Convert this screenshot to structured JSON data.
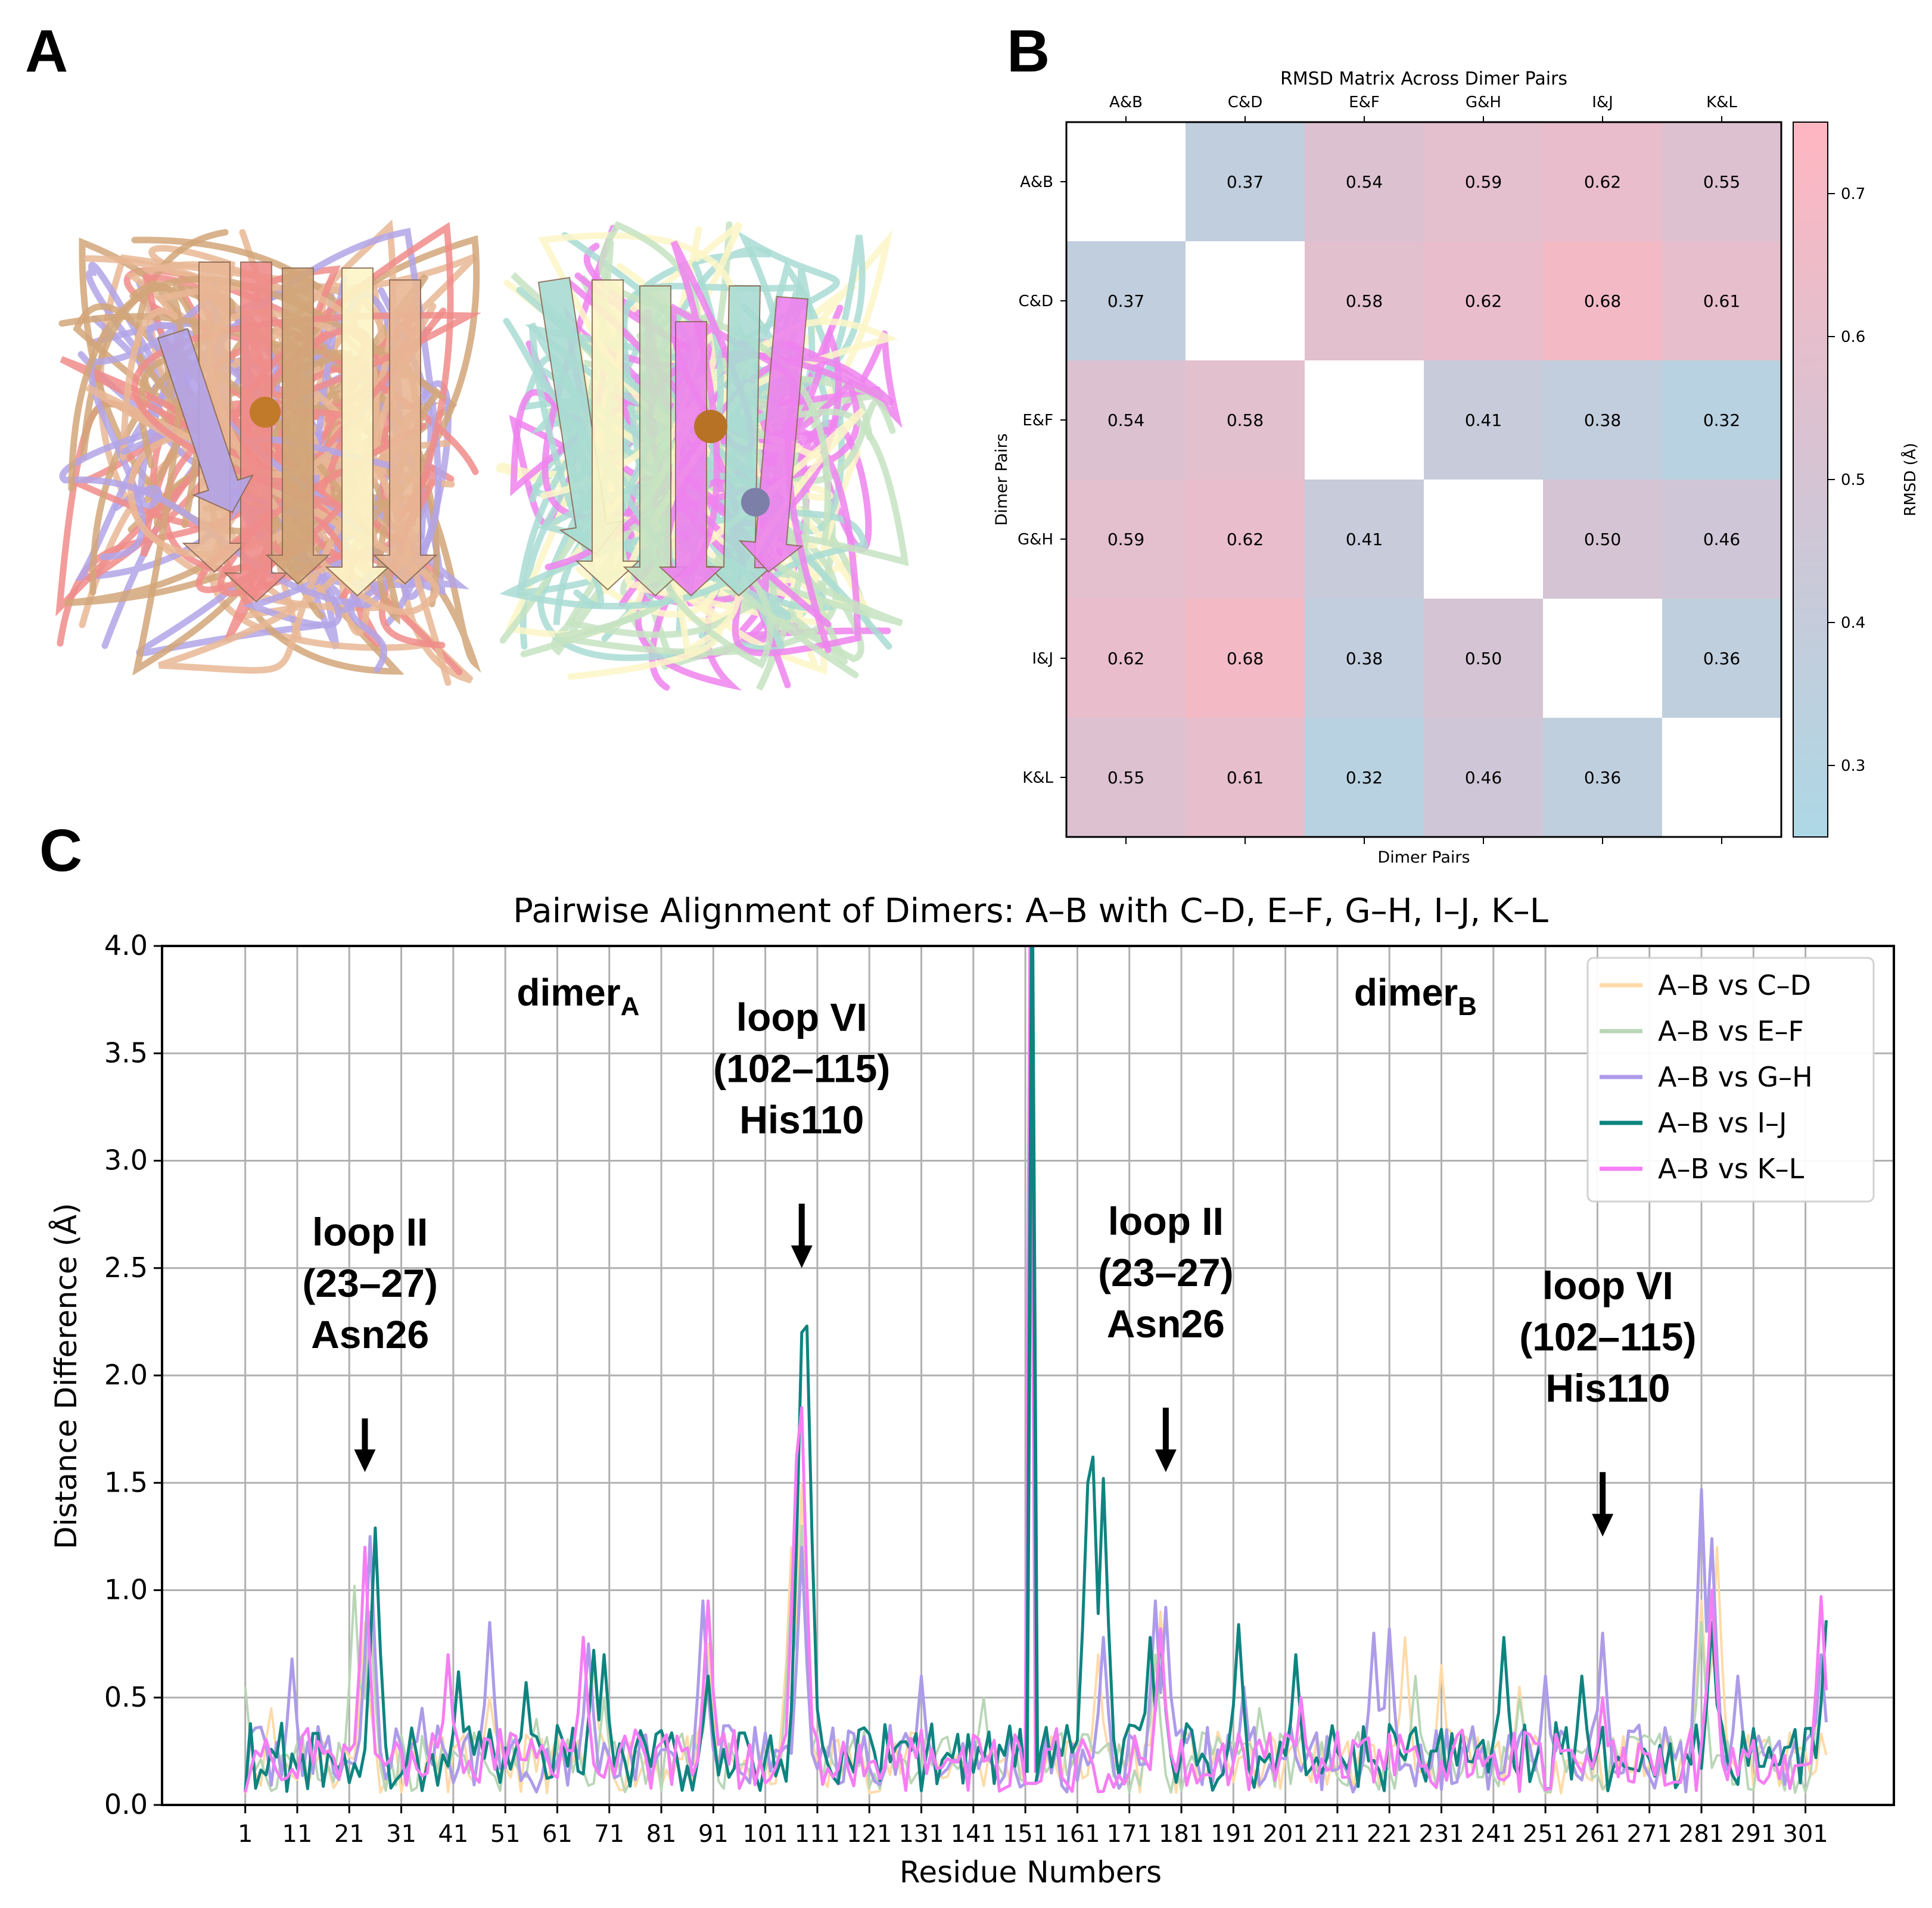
{
  "panels": {
    "a": "A",
    "b": "B",
    "c": "C"
  },
  "structure_colors": [
    "#e9b795",
    "#f08c8a",
    "#b3a4e8",
    "#a9dcd3",
    "#ee82ee",
    "#fdf6c8",
    "#c6e3c2",
    "#d2a679"
  ],
  "chart_data": [
    {
      "type": "heatmap",
      "title": "RMSD Matrix Across Dimer Pairs",
      "xlabel": "Dimer Pairs",
      "ylabel": "Dimer Pairs",
      "x_ticks": [
        "A&B",
        "C&D",
        "E&F",
        "G&H",
        "I&J",
        "K&L"
      ],
      "y_ticks": [
        "A&B",
        "C&D",
        "E&F",
        "G&H",
        "I&J",
        "K&L"
      ],
      "values": [
        [
          null,
          0.37,
          0.54,
          0.59,
          0.62,
          0.55
        ],
        [
          0.37,
          null,
          0.58,
          0.62,
          0.68,
          0.61
        ],
        [
          0.54,
          0.58,
          null,
          0.41,
          0.38,
          0.32
        ],
        [
          0.59,
          0.62,
          0.41,
          null,
          0.5,
          0.46
        ],
        [
          0.62,
          0.68,
          0.38,
          0.5,
          null,
          0.36
        ],
        [
          0.55,
          0.61,
          0.32,
          0.46,
          0.36,
          null
        ]
      ],
      "cell_labels": [
        [
          "",
          "0.37",
          "0.54",
          "0.59",
          "0.62",
          "0.55"
        ],
        [
          "0.37",
          "",
          "0.58",
          "0.62",
          "0.68",
          "0.61"
        ],
        [
          "0.54",
          "0.58",
          "",
          "0.41",
          "0.38",
          "0.32"
        ],
        [
          "0.59",
          "0.62",
          "0.41",
          "",
          "0.50",
          "0.46"
        ],
        [
          "0.62",
          "0.68",
          "0.38",
          "0.50",
          "",
          "0.36"
        ],
        [
          "0.55",
          "0.61",
          "0.32",
          "0.46",
          "0.36",
          ""
        ]
      ],
      "colorbar": {
        "label": "RMSD (Å)",
        "range": [
          0.25,
          0.75
        ],
        "ticks": [
          "0.3",
          "0.4",
          "0.5",
          "0.6",
          "0.7"
        ],
        "low_color": "#add8e6",
        "high_color": "#ffb6c1"
      }
    },
    {
      "type": "line",
      "title": "Pairwise Alignment of Dimers: A–B with C–D, E–F, G–H, I–J, K–L",
      "xlabel": "Residue Numbers",
      "ylabel": "Distance Difference (Å)",
      "xlim": [
        -15,
        318
      ],
      "ylim": [
        0,
        4
      ],
      "x_ticks": [
        "1",
        "11",
        "21",
        "31",
        "41",
        "51",
        "61",
        "71",
        "81",
        "91",
        "101",
        "111",
        "121",
        "131",
        "141",
        "151",
        "161",
        "171",
        "181",
        "191",
        "201",
        "211",
        "221",
        "231",
        "241",
        "251",
        "261",
        "271",
        "281",
        "291",
        "301"
      ],
      "y_ticks": [
        "0.0",
        "0.5",
        "1.0",
        "1.5",
        "2.0",
        "2.5",
        "3.0",
        "3.5",
        "4.0"
      ],
      "grid": true,
      "legend_position": "top-right",
      "series": [
        {
          "name": "A–B vs C–D",
          "color": "#ffdaa8",
          "width": 4,
          "seed": 11,
          "base": 0.22,
          "peaks": [
            [
              6,
              0.45
            ],
            [
              24,
              0.85
            ],
            [
              48,
              0.5
            ],
            [
              68,
              0.65
            ],
            [
              90,
              0.75
            ],
            [
              106,
              1.2
            ],
            [
              108,
              1.5
            ],
            [
              131,
              0.6
            ],
            [
              165,
              0.7
            ],
            [
              177,
              0.9
            ],
            [
              224,
              0.78
            ],
            [
              231,
              0.65
            ],
            [
              246,
              0.55
            ],
            [
              281,
              0.95
            ],
            [
              284,
              1.2
            ]
          ]
        },
        {
          "name": "A–B vs E–F",
          "color": "#b9d6b6",
          "width": 4,
          "seed": 23,
          "base": 0.22,
          "peaks": [
            [
              1,
              0.55
            ],
            [
              22,
              1.02
            ],
            [
              25,
              0.9
            ],
            [
              57,
              0.4
            ],
            [
              70,
              0.5
            ],
            [
              90,
              0.55
            ],
            [
              106,
              1.0
            ],
            [
              108,
              1.3
            ],
            [
              143,
              0.5
            ],
            [
              176,
              0.7
            ],
            [
              196,
              0.45
            ],
            [
              226,
              0.6
            ],
            [
              246,
              0.5
            ],
            [
              281,
              0.85
            ],
            [
              304,
              0.7
            ]
          ]
        },
        {
          "name": "A–B vs G–H",
          "color": "#ad9be9",
          "width": 5,
          "seed": 37,
          "base": 0.24,
          "peaks": [
            [
              10,
              0.68
            ],
            [
              25,
              1.25
            ],
            [
              35,
              0.45
            ],
            [
              48,
              0.85
            ],
            [
              67,
              0.75
            ],
            [
              89,
              0.95
            ],
            [
              108,
              1.2
            ],
            [
              131,
              0.6
            ],
            [
              166,
              0.78
            ],
            [
              176,
              0.95
            ],
            [
              178,
              0.92
            ],
            [
              193,
              0.55
            ],
            [
              218,
              0.8
            ],
            [
              221,
              0.82
            ],
            [
              251,
              0.6
            ],
            [
              262,
              0.8
            ],
            [
              281,
              1.47
            ],
            [
              283,
              1.24
            ],
            [
              288,
              0.6
            ],
            [
              304,
              0.7
            ]
          ]
        },
        {
          "name": "A–B vs I–J",
          "color": "#0e8480",
          "width": 5,
          "seed": 53,
          "base": 0.25,
          "peaks": [
            [
              26,
              1.29
            ],
            [
              42,
              0.62
            ],
            [
              55,
              0.57
            ],
            [
              68,
              0.72
            ],
            [
              70,
              0.7
            ],
            [
              90,
              0.6
            ],
            [
              108,
              2.2
            ],
            [
              109,
              2.23
            ],
            [
              163,
              1.5
            ],
            [
              164,
              1.62
            ],
            [
              166,
              1.52
            ],
            [
              175,
              0.78
            ],
            [
              177,
              0.8
            ],
            [
              192,
              0.84
            ],
            [
              203,
              0.7
            ],
            [
              243,
              0.78
            ],
            [
              258,
              0.6
            ],
            [
              283,
              0.85
            ],
            [
              305,
              0.86
            ]
          ]
        },
        {
          "name": "A–B vs K–L",
          "color": "#f67df4",
          "width": 5,
          "seed": 71,
          "base": 0.23,
          "peaks": [
            [
              24,
              1.2
            ],
            [
              40,
              0.7
            ],
            [
              66,
              0.78
            ],
            [
              90,
              0.95
            ],
            [
              107,
              1.62
            ],
            [
              108,
              1.85
            ],
            [
              177,
              0.82
            ],
            [
              204,
              0.5
            ],
            [
              262,
              0.5
            ],
            [
              283,
              1.0
            ],
            [
              304,
              0.97
            ]
          ]
        }
      ],
      "spike": {
        "x": 152,
        "value": 4.0,
        "series_colors": [
          "#f67df4",
          "#0e8480"
        ]
      },
      "region_labels": [
        {
          "text": "dimer",
          "sub": "A",
          "x": 65
        },
        {
          "text": "dimer",
          "sub": "B",
          "x": 226
        }
      ],
      "annotations": [
        {
          "line1": "loop II",
          "line2": "(23–27)",
          "line3": "Asn26",
          "x": 25,
          "arrow_x": 24,
          "arrow_top": 1.8,
          "arrow_bottom": 1.55
        },
        {
          "line1": "loop VI",
          "line2": "(102–115)",
          "line3": "His110",
          "x": 108,
          "arrow_x": 108,
          "arrow_top": 2.8,
          "arrow_bottom": 2.5
        },
        {
          "line1": "loop II",
          "line2": "(23–27)",
          "line3": "Asn26",
          "x": 178,
          "arrow_x": 178,
          "arrow_top": 1.85,
          "arrow_bottom": 1.55
        },
        {
          "line1": "loop VI",
          "line2": "(102–115)",
          "line3": "His110",
          "x": 263,
          "arrow_x": 262,
          "arrow_top": 1.55,
          "arrow_bottom": 1.25
        }
      ]
    }
  ]
}
